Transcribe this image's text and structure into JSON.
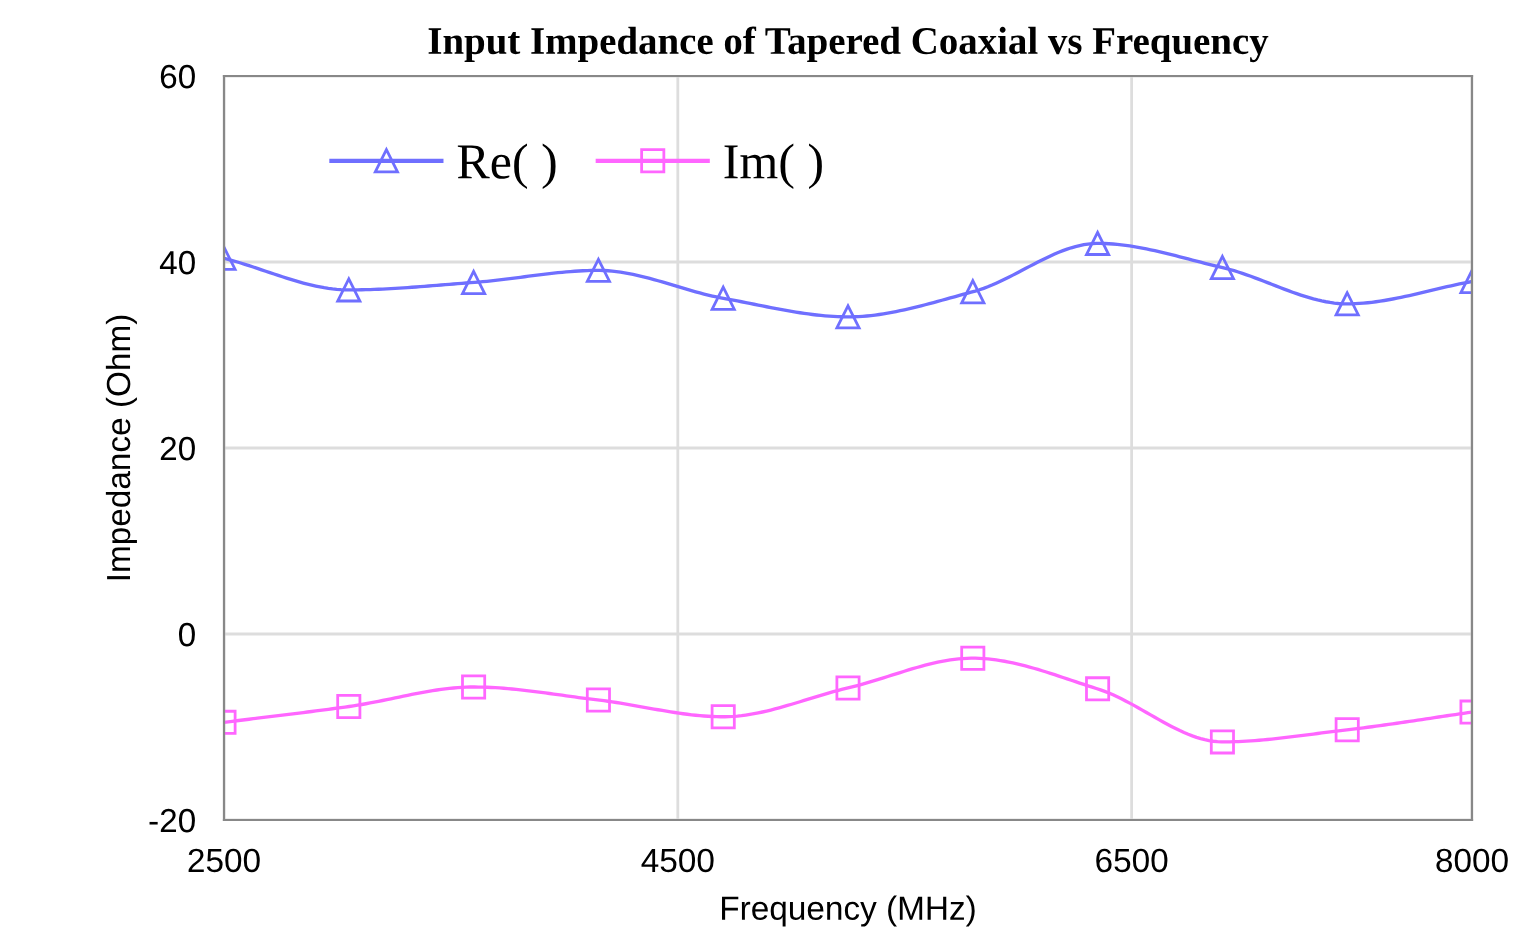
{
  "chart_data": {
    "type": "line",
    "title": "Input Impedance of Tapered Coaxial vs Frequency",
    "xlabel": "Frequency (MHz)",
    "ylabel": "Impedance (Ohm)",
    "x": [
      2500,
      3050,
      3600,
      4150,
      4700,
      5250,
      5800,
      6350,
      6900,
      7450,
      8000
    ],
    "series": [
      {
        "name": "Re( )",
        "color": "#6f6fff",
        "marker": "triangle",
        "values": [
          40.4,
          37.0,
          37.8,
          39.1,
          36.1,
          34.1,
          36.8,
          42.0,
          39.4,
          35.5,
          37.9
        ]
      },
      {
        "name": "Im( )",
        "color": "#ff66ff",
        "marker": "square",
        "values": [
          -9.5,
          -7.8,
          -5.7,
          -7.1,
          -8.9,
          -5.8,
          -2.6,
          -5.9,
          -11.6,
          -10.3,
          -8.4
        ]
      }
    ],
    "xlim": [
      2500,
      8000
    ],
    "xticks": [
      2500,
      4500,
      6500,
      8000
    ],
    "ylim": [
      -20,
      60
    ],
    "yticks": [
      -20,
      0,
      20,
      40,
      60
    ],
    "grid": true,
    "legend": "top left",
    "line_style": "solid"
  }
}
